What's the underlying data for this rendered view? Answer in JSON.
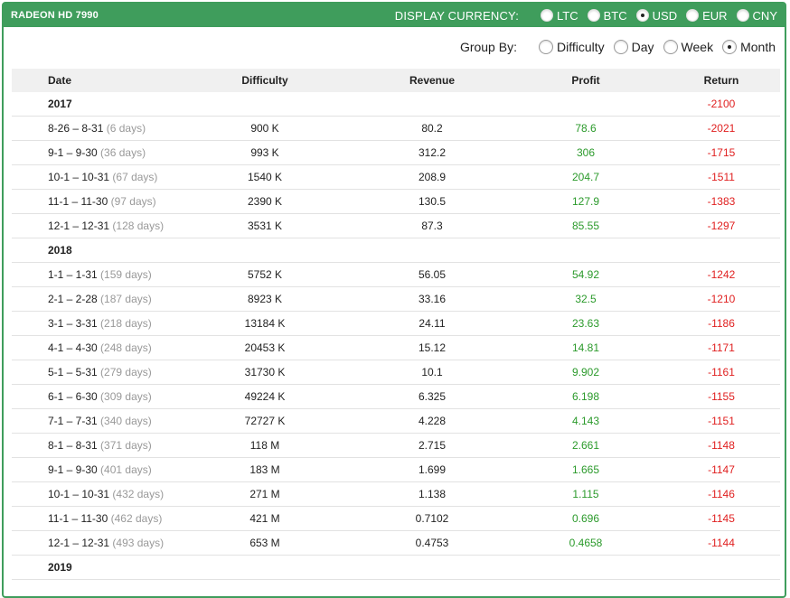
{
  "header": {
    "title": "RADEON HD 7990",
    "currency_label": "DISPLAY CURRENCY:",
    "currencies": [
      {
        "label": "LTC",
        "checked": false
      },
      {
        "label": "BTC",
        "checked": false
      },
      {
        "label": "USD",
        "checked": true
      },
      {
        "label": "EUR",
        "checked": false
      },
      {
        "label": "CNY",
        "checked": false
      }
    ]
  },
  "groupby": {
    "label": "Group By:",
    "options": [
      {
        "label": "Difficulty",
        "checked": false
      },
      {
        "label": "Day",
        "checked": false
      },
      {
        "label": "Week",
        "checked": false
      },
      {
        "label": "Month",
        "checked": true
      }
    ]
  },
  "table": {
    "columns": [
      "Date",
      "Difficulty",
      "Revenue",
      "Profit",
      "Return"
    ],
    "rows": [
      {
        "type": "year",
        "date": "2017",
        "return": "-2100"
      },
      {
        "type": "period",
        "date": "8-26 – 8-31",
        "days": "(6 days)",
        "difficulty": "900 K",
        "revenue": "80.2",
        "profit": "78.6",
        "return": "-2021"
      },
      {
        "type": "period",
        "date": "9-1 – 9-30",
        "days": "(36 days)",
        "difficulty": "993 K",
        "revenue": "312.2",
        "profit": "306",
        "return": "-1715"
      },
      {
        "type": "period",
        "date": "10-1 – 10-31",
        "days": "(67 days)",
        "difficulty": "1540 K",
        "revenue": "208.9",
        "profit": "204.7",
        "return": "-1511"
      },
      {
        "type": "period",
        "date": "11-1 – 11-30",
        "days": "(97 days)",
        "difficulty": "2390 K",
        "revenue": "130.5",
        "profit": "127.9",
        "return": "-1383"
      },
      {
        "type": "period",
        "date": "12-1 – 12-31",
        "days": "(128 days)",
        "difficulty": "3531 K",
        "revenue": "87.3",
        "profit": "85.55",
        "return": "-1297"
      },
      {
        "type": "year",
        "date": "2018",
        "return": ""
      },
      {
        "type": "period",
        "date": "1-1 – 1-31",
        "days": "(159 days)",
        "difficulty": "5752 K",
        "revenue": "56.05",
        "profit": "54.92",
        "return": "-1242"
      },
      {
        "type": "period",
        "date": "2-1 – 2-28",
        "days": "(187 days)",
        "difficulty": "8923 K",
        "revenue": "33.16",
        "profit": "32.5",
        "return": "-1210"
      },
      {
        "type": "period",
        "date": "3-1 – 3-31",
        "days": "(218 days)",
        "difficulty": "13184 K",
        "revenue": "24.11",
        "profit": "23.63",
        "return": "-1186"
      },
      {
        "type": "period",
        "date": "4-1 – 4-30",
        "days": "(248 days)",
        "difficulty": "20453 K",
        "revenue": "15.12",
        "profit": "14.81",
        "return": "-1171"
      },
      {
        "type": "period",
        "date": "5-1 – 5-31",
        "days": "(279 days)",
        "difficulty": "31730 K",
        "revenue": "10.1",
        "profit": "9.902",
        "return": "-1161"
      },
      {
        "type": "period",
        "date": "6-1 – 6-30",
        "days": "(309 days)",
        "difficulty": "49224 K",
        "revenue": "6.325",
        "profit": "6.198",
        "return": "-1155"
      },
      {
        "type": "period",
        "date": "7-1 – 7-31",
        "days": "(340 days)",
        "difficulty": "72727 K",
        "revenue": "4.228",
        "profit": "4.143",
        "return": "-1151"
      },
      {
        "type": "period",
        "date": "8-1 – 8-31",
        "days": "(371 days)",
        "difficulty": "118 M",
        "revenue": "2.715",
        "profit": "2.661",
        "return": "-1148"
      },
      {
        "type": "period",
        "date": "9-1 – 9-30",
        "days": "(401 days)",
        "difficulty": "183 M",
        "revenue": "1.699",
        "profit": "1.665",
        "return": "-1147"
      },
      {
        "type": "period",
        "date": "10-1 – 10-31",
        "days": "(432 days)",
        "difficulty": "271 M",
        "revenue": "1.138",
        "profit": "1.115",
        "return": "-1146"
      },
      {
        "type": "period",
        "date": "11-1 – 11-30",
        "days": "(462 days)",
        "difficulty": "421 M",
        "revenue": "0.7102",
        "profit": "0.696",
        "return": "-1145"
      },
      {
        "type": "period",
        "date": "12-1 – 12-31",
        "days": "(493 days)",
        "difficulty": "653 M",
        "revenue": "0.4753",
        "profit": "0.4658",
        "return": "-1144"
      },
      {
        "type": "year",
        "date": "2019",
        "return": ""
      }
    ]
  },
  "colors": {
    "accent": "#3f9d5c",
    "profit": "#2b9a2b",
    "return": "#e02020",
    "days": "#999999"
  }
}
